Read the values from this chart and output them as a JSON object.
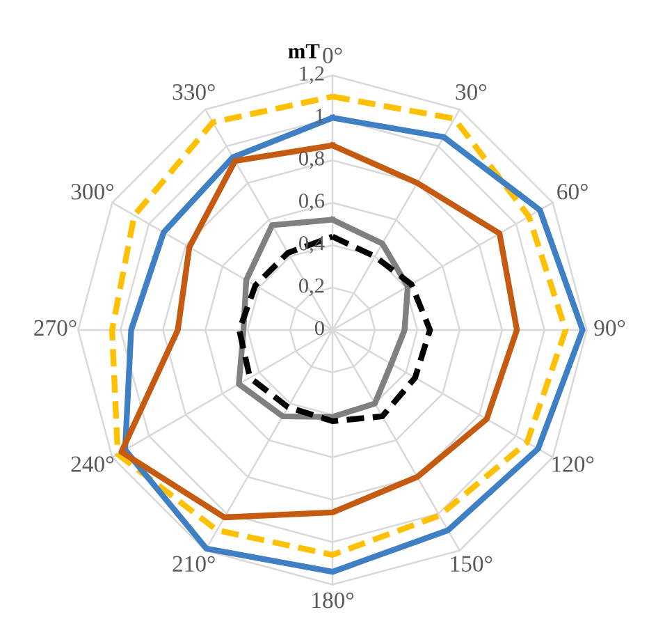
{
  "chart_data": {
    "type": "radar",
    "ylabel": "mT",
    "categories": [
      "0°",
      "30°",
      "60°",
      "90°",
      "120°",
      "150°",
      "180°",
      "210°",
      "240°",
      "270°",
      "300°",
      "330°"
    ],
    "ylim": [
      0,
      1.2
    ],
    "yticks": [
      0,
      {
        "value": 0.2,
        "label": "0,2"
      },
      {
        "value": 0.4,
        "label": "0,4"
      },
      {
        "value": 0.6,
        "label": "0,6"
      },
      {
        "value": 0.8,
        "label": "0,8"
      },
      {
        "value": 1,
        "label": "1"
      },
      {
        "value": 1.2,
        "label": "1,2"
      }
    ],
    "grid": true,
    "marker": "none",
    "series": [
      {
        "color": "#ffc000",
        "line_style": "dashed",
        "values": [
          1.1,
          1.15,
          1.07,
          1.1,
          1.06,
          1.01,
          1.06,
          1.09,
          1.17,
          1.04,
          1.08,
          1.13
        ]
      },
      {
        "color": "#3f7fc4",
        "line_style": "solid",
        "values": [
          1.0,
          1.05,
          1.13,
          1.18,
          1.12,
          1.09,
          1.14,
          1.19,
          1.13,
          0.95,
          0.92,
          0.94
        ]
      },
      {
        "color": "#c55a11",
        "line_style": "solid",
        "values": [
          0.87,
          0.8,
          0.91,
          0.87,
          0.84,
          0.8,
          0.86,
          1.02,
          1.15,
          0.73,
          0.78,
          0.92
        ]
      },
      {
        "color": "#808080",
        "line_style": "solid",
        "values": [
          0.52,
          0.47,
          0.41,
          0.34,
          0.32,
          0.4,
          0.41,
          0.47,
          0.51,
          0.42,
          0.47,
          0.57
        ]
      },
      {
        "color": "#000000",
        "line_style": "dashed",
        "values": [
          0.44,
          0.4,
          0.43,
          0.46,
          0.45,
          0.47,
          0.43,
          0.42,
          0.45,
          0.44,
          0.42,
          0.42
        ]
      }
    ]
  }
}
